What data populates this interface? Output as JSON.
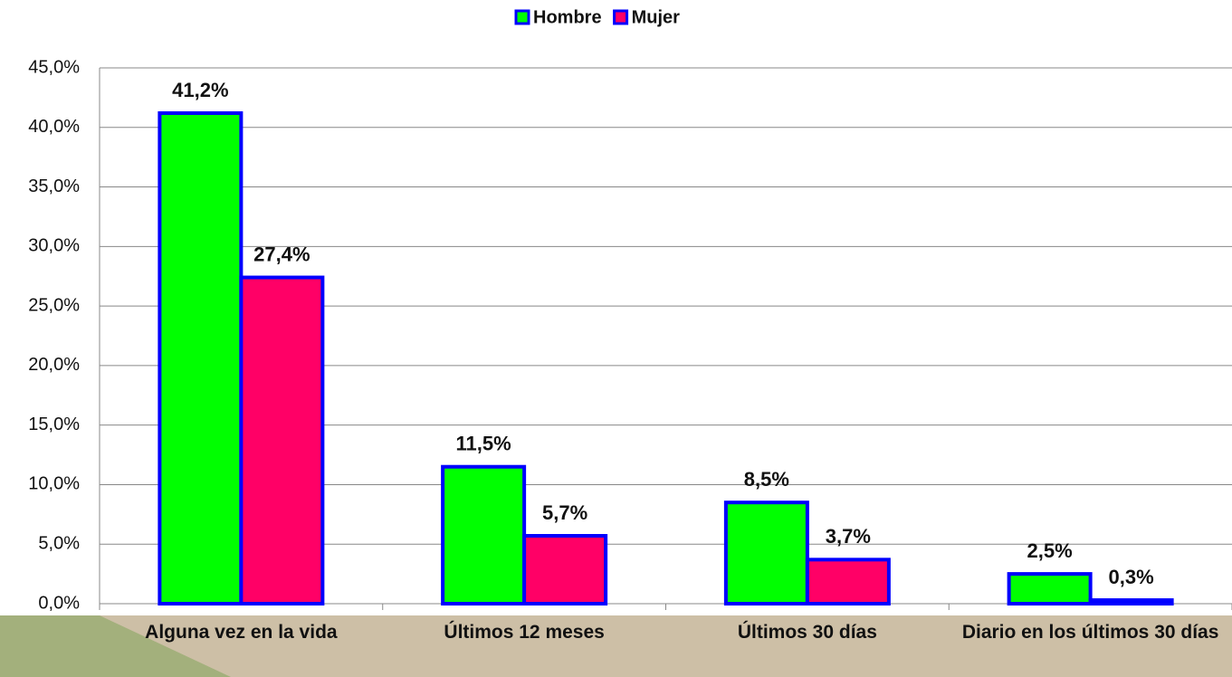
{
  "chart_data": {
    "type": "bar",
    "categories": [
      "Alguna vez en la vida",
      "Últimos 12 meses",
      "Últimos 30 días",
      "Diario en los últimos 30 días"
    ],
    "series": [
      {
        "name": "Hombre",
        "color": "#00ff00",
        "values": [
          41.2,
          11.5,
          8.5,
          2.5
        ],
        "value_labels": [
          "41,2%",
          "11,5%",
          "8,5%",
          "2,5%"
        ]
      },
      {
        "name": "Mujer",
        "color": "#ff0066",
        "values": [
          27.4,
          5.7,
          3.7,
          0.3
        ],
        "value_labels": [
          "27,4%",
          "5,7%",
          "3,7%",
          "0,3%"
        ]
      }
    ],
    "ylim": [
      0,
      45
    ],
    "yticks": [
      {
        "value": 0,
        "label": "0,0%"
      },
      {
        "value": 5,
        "label": "5,0%"
      },
      {
        "value": 10,
        "label": "10,0%"
      },
      {
        "value": 15,
        "label": "15,0%"
      },
      {
        "value": 20,
        "label": "20,0%"
      },
      {
        "value": 25,
        "label": "25,0%"
      },
      {
        "value": 30,
        "label": "30,0%"
      },
      {
        "value": 35,
        "label": "35,0%"
      },
      {
        "value": 40,
        "label": "40,0%"
      },
      {
        "value": 45,
        "label": "45,0%"
      }
    ],
    "grid": true,
    "legend": "top",
    "border_color": "#0000ff"
  }
}
